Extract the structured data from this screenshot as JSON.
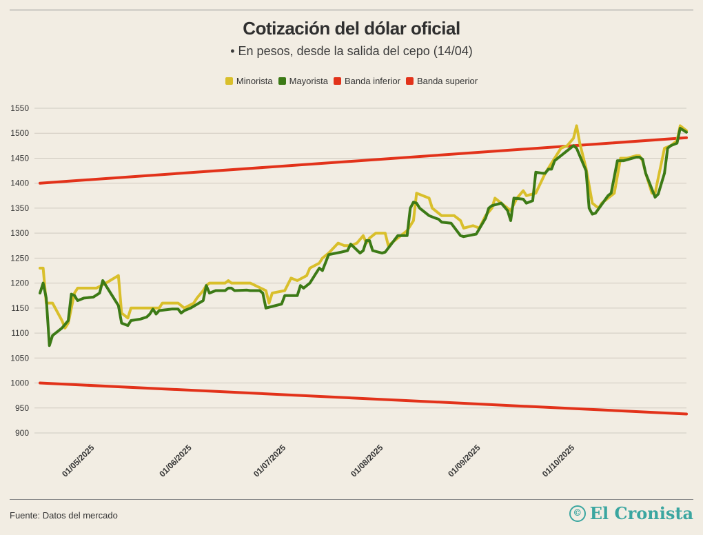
{
  "header": {
    "title": "Cotización del dólar oficial",
    "subtitle": "• En pesos, desde la salida del cepo (14/04)"
  },
  "footer": {
    "source": "Fuente: Datos del mercado",
    "logo_text": "El Cronista",
    "logo_mark": "©"
  },
  "colors": {
    "background": "#f2ede3",
    "minorista": "#d9bf2b",
    "mayorista": "#3c7a16",
    "banda_inferior": "#e2321a",
    "banda_superior": "#e2321a",
    "grid": "#cfcac0",
    "logo": "#3aa6a0"
  },
  "chart_data": {
    "type": "line",
    "title": "Cotización del dólar oficial",
    "subtitle": "• En pesos, desde la salida del cepo (14/04)",
    "xlabel": "",
    "ylabel": "",
    "x_range": [
      "2025-04-14",
      "2025-10-27"
    ],
    "ylim": [
      900,
      1550
    ],
    "y_ticks": [
      900,
      950,
      1000,
      1050,
      1100,
      1150,
      1200,
      1250,
      1300,
      1350,
      1400,
      1450,
      1500,
      1550
    ],
    "x_tick_dates": [
      "2025-05-01",
      "2025-06-01",
      "2025-07-01",
      "2025-08-01",
      "2025-09-01",
      "2025-10-01"
    ],
    "x_tick_labels": [
      "01/05/2025",
      "01/06/2025",
      "01/07/2025",
      "01/08/2025",
      "01/09/2025",
      "01/10/2025"
    ],
    "grid": "horizontal",
    "legend_position": "top-center",
    "series": [
      {
        "name": "Minorista",
        "color": "#d9bf2b",
        "points": [
          [
            "2025-04-14",
            1230
          ],
          [
            "2025-04-15",
            1230
          ],
          [
            "2025-04-16",
            1160
          ],
          [
            "2025-04-17",
            1160
          ],
          [
            "2025-04-18",
            1160
          ],
          [
            "2025-04-21",
            1125
          ],
          [
            "2025-04-22",
            1110
          ],
          [
            "2025-04-23",
            1120
          ],
          [
            "2025-04-25",
            1180
          ],
          [
            "2025-04-26",
            1190
          ],
          [
            "2025-04-29",
            1190
          ],
          [
            "2025-05-01",
            1190
          ],
          [
            "2025-05-02",
            1190
          ],
          [
            "2025-05-05",
            1200
          ],
          [
            "2025-05-09",
            1215
          ],
          [
            "2025-05-10",
            1140
          ],
          [
            "2025-05-12",
            1130
          ],
          [
            "2025-05-13",
            1150
          ],
          [
            "2025-05-20",
            1150
          ],
          [
            "2025-05-22",
            1150
          ],
          [
            "2025-05-23",
            1160
          ],
          [
            "2025-05-28",
            1160
          ],
          [
            "2025-05-30",
            1150
          ],
          [
            "2025-06-02",
            1160
          ],
          [
            "2025-06-03",
            1170
          ],
          [
            "2025-06-05",
            1185
          ],
          [
            "2025-06-06",
            1195
          ],
          [
            "2025-06-07",
            1200
          ],
          [
            "2025-06-12",
            1200
          ],
          [
            "2025-06-13",
            1205
          ],
          [
            "2025-06-14",
            1200
          ],
          [
            "2025-06-20",
            1200
          ],
          [
            "2025-06-25",
            1185
          ],
          [
            "2025-06-26",
            1160
          ],
          [
            "2025-06-27",
            1180
          ],
          [
            "2025-07-01",
            1185
          ],
          [
            "2025-07-03",
            1210
          ],
          [
            "2025-07-05",
            1205
          ],
          [
            "2025-07-08",
            1215
          ],
          [
            "2025-07-09",
            1230
          ],
          [
            "2025-07-12",
            1240
          ],
          [
            "2025-07-13",
            1250
          ],
          [
            "2025-07-15",
            1260
          ],
          [
            "2025-07-18",
            1280
          ],
          [
            "2025-07-20",
            1275
          ],
          [
            "2025-07-22",
            1275
          ],
          [
            "2025-07-24",
            1280
          ],
          [
            "2025-07-26",
            1295
          ],
          [
            "2025-07-27",
            1280
          ],
          [
            "2025-07-28",
            1290
          ],
          [
            "2025-07-30",
            1300
          ],
          [
            "2025-08-02",
            1300
          ],
          [
            "2025-08-03",
            1275
          ],
          [
            "2025-08-05",
            1285
          ],
          [
            "2025-08-07",
            1295
          ],
          [
            "2025-08-09",
            1305
          ],
          [
            "2025-08-11",
            1325
          ],
          [
            "2025-08-12",
            1380
          ],
          [
            "2025-08-14",
            1375
          ],
          [
            "2025-08-16",
            1370
          ],
          [
            "2025-08-17",
            1350
          ],
          [
            "2025-08-20",
            1335
          ],
          [
            "2025-08-24",
            1335
          ],
          [
            "2025-08-26",
            1325
          ],
          [
            "2025-08-27",
            1310
          ],
          [
            "2025-08-30",
            1315
          ],
          [
            "2025-09-01",
            1310
          ],
          [
            "2025-09-03",
            1335
          ],
          [
            "2025-09-05",
            1350
          ],
          [
            "2025-09-06",
            1370
          ],
          [
            "2025-09-09",
            1355
          ],
          [
            "2025-09-11",
            1345
          ],
          [
            "2025-09-13",
            1370
          ],
          [
            "2025-09-15",
            1385
          ],
          [
            "2025-09-16",
            1375
          ],
          [
            "2025-09-19",
            1380
          ],
          [
            "2025-09-22",
            1420
          ],
          [
            "2025-09-24",
            1440
          ],
          [
            "2025-09-27",
            1470
          ],
          [
            "2025-09-29",
            1475
          ],
          [
            "2025-10-01",
            1490
          ],
          [
            "2025-10-02",
            1515
          ],
          [
            "2025-10-03",
            1480
          ],
          [
            "2025-10-05",
            1430
          ],
          [
            "2025-10-07",
            1360
          ],
          [
            "2025-10-09",
            1350
          ],
          [
            "2025-10-10",
            1360
          ],
          [
            "2025-10-14",
            1380
          ],
          [
            "2025-10-16",
            1450
          ],
          [
            "2025-10-18",
            1450
          ],
          [
            "2025-10-21",
            1455
          ],
          [
            "2025-10-22",
            1455
          ],
          [
            "2025-10-23",
            1445
          ],
          [
            "2025-10-24",
            1420
          ],
          [
            "2025-10-25",
            1400
          ],
          [
            "2025-10-26",
            1380
          ],
          [
            "2025-10-27",
            1380
          ],
          [
            "2025-10-28",
            1410
          ],
          [
            "2025-10-29",
            1440
          ],
          [
            "2025-10-30",
            1470
          ],
          [
            "2025-11-01",
            1475
          ],
          [
            "2025-11-03",
            1485
          ],
          [
            "2025-11-04",
            1515
          ],
          [
            "2025-11-06",
            1505
          ]
        ]
      },
      {
        "name": "Mayorista",
        "color": "#3c7a16",
        "points": [
          [
            "2025-04-14",
            1180
          ],
          [
            "2025-04-15",
            1200
          ],
          [
            "2025-04-16",
            1170
          ],
          [
            "2025-04-17",
            1075
          ],
          [
            "2025-04-18",
            1095
          ],
          [
            "2025-04-21",
            1110
          ],
          [
            "2025-04-23",
            1125
          ],
          [
            "2025-04-24",
            1178
          ],
          [
            "2025-04-25",
            1175
          ],
          [
            "2025-04-26",
            1165
          ],
          [
            "2025-04-28",
            1170
          ],
          [
            "2025-05-01",
            1172
          ],
          [
            "2025-05-03",
            1180
          ],
          [
            "2025-05-04",
            1205
          ],
          [
            "2025-05-09",
            1155
          ],
          [
            "2025-05-10",
            1120
          ],
          [
            "2025-05-12",
            1115
          ],
          [
            "2025-05-13",
            1125
          ],
          [
            "2025-05-16",
            1128
          ],
          [
            "2025-05-18",
            1132
          ],
          [
            "2025-05-19",
            1138
          ],
          [
            "2025-05-20",
            1148
          ],
          [
            "2025-05-21",
            1138
          ],
          [
            "2025-05-22",
            1145
          ],
          [
            "2025-05-26",
            1148
          ],
          [
            "2025-05-28",
            1148
          ],
          [
            "2025-05-29",
            1140
          ],
          [
            "2025-05-30",
            1145
          ],
          [
            "2025-06-01",
            1150
          ],
          [
            "2025-06-05",
            1165
          ],
          [
            "2025-06-06",
            1195
          ],
          [
            "2025-06-07",
            1180
          ],
          [
            "2025-06-09",
            1185
          ],
          [
            "2025-06-12",
            1185
          ],
          [
            "2025-06-13",
            1190
          ],
          [
            "2025-06-14",
            1190
          ],
          [
            "2025-06-15",
            1185
          ],
          [
            "2025-06-19",
            1186
          ],
          [
            "2025-06-20",
            1185
          ],
          [
            "2025-06-23",
            1185
          ],
          [
            "2025-06-24",
            1180
          ],
          [
            "2025-06-25",
            1150
          ],
          [
            "2025-06-30",
            1158
          ],
          [
            "2025-07-01",
            1175
          ],
          [
            "2025-07-05",
            1175
          ],
          [
            "2025-07-06",
            1195
          ],
          [
            "2025-07-07",
            1190
          ],
          [
            "2025-07-09",
            1200
          ],
          [
            "2025-07-11",
            1220
          ],
          [
            "2025-07-12",
            1230
          ],
          [
            "2025-07-13",
            1225
          ],
          [
            "2025-07-15",
            1257
          ],
          [
            "2025-07-19",
            1262
          ],
          [
            "2025-07-21",
            1265
          ],
          [
            "2025-07-22",
            1278
          ],
          [
            "2025-07-25",
            1260
          ],
          [
            "2025-07-26",
            1265
          ],
          [
            "2025-07-27",
            1285
          ],
          [
            "2025-07-28",
            1285
          ],
          [
            "2025-07-29",
            1265
          ],
          [
            "2025-08-01",
            1260
          ],
          [
            "2025-08-02",
            1262
          ],
          [
            "2025-08-06",
            1295
          ],
          [
            "2025-08-09",
            1295
          ],
          [
            "2025-08-10",
            1350
          ],
          [
            "2025-08-11",
            1362
          ],
          [
            "2025-08-12",
            1360
          ],
          [
            "2025-08-13",
            1350
          ],
          [
            "2025-08-16",
            1335
          ],
          [
            "2025-08-18",
            1330
          ],
          [
            "2025-08-19",
            1328
          ],
          [
            "2025-08-20",
            1322
          ],
          [
            "2025-08-23",
            1320
          ],
          [
            "2025-08-26",
            1295
          ],
          [
            "2025-08-27",
            1293
          ],
          [
            "2025-08-31",
            1298
          ],
          [
            "2025-09-03",
            1330
          ],
          [
            "2025-09-04",
            1350
          ],
          [
            "2025-09-05",
            1355
          ],
          [
            "2025-09-08",
            1360
          ],
          [
            "2025-09-10",
            1345
          ],
          [
            "2025-09-11",
            1325
          ],
          [
            "2025-09-12",
            1370
          ],
          [
            "2025-09-15",
            1368
          ],
          [
            "2025-09-16",
            1360
          ],
          [
            "2025-09-18",
            1365
          ],
          [
            "2025-09-19",
            1422
          ],
          [
            "2025-09-21",
            1420
          ],
          [
            "2025-09-22",
            1420
          ],
          [
            "2025-09-23",
            1428
          ],
          [
            "2025-09-24",
            1428
          ],
          [
            "2025-09-25",
            1445
          ],
          [
            "2025-09-27",
            1455
          ],
          [
            "2025-09-30",
            1470
          ],
          [
            "2025-10-01",
            1475
          ],
          [
            "2025-10-02",
            1470
          ],
          [
            "2025-10-05",
            1425
          ],
          [
            "2025-10-06",
            1350
          ],
          [
            "2025-10-07",
            1338
          ],
          [
            "2025-10-08",
            1340
          ],
          [
            "2025-10-12",
            1375
          ],
          [
            "2025-10-13",
            1380
          ],
          [
            "2025-10-15",
            1445
          ],
          [
            "2025-10-17",
            1445
          ],
          [
            "2025-10-21",
            1452
          ],
          [
            "2025-10-22",
            1452
          ],
          [
            "2025-10-23",
            1448
          ],
          [
            "2025-10-24",
            1420
          ],
          [
            "2025-10-27",
            1372
          ],
          [
            "2025-10-28",
            1378
          ],
          [
            "2025-10-30",
            1420
          ],
          [
            "2025-10-31",
            1470
          ],
          [
            "2025-11-01",
            1475
          ],
          [
            "2025-11-03",
            1480
          ],
          [
            "2025-11-04",
            1510
          ],
          [
            "2025-11-06",
            1502
          ]
        ]
      },
      {
        "name": "Banda inferior",
        "color": "#e2321a",
        "points": [
          [
            "2025-04-14",
            1000
          ],
          [
            "2025-11-06",
            938
          ]
        ]
      },
      {
        "name": "Banda superior",
        "color": "#e2321a",
        "points": [
          [
            "2025-04-14",
            1400
          ],
          [
            "2025-11-06",
            1491
          ]
        ]
      }
    ]
  }
}
